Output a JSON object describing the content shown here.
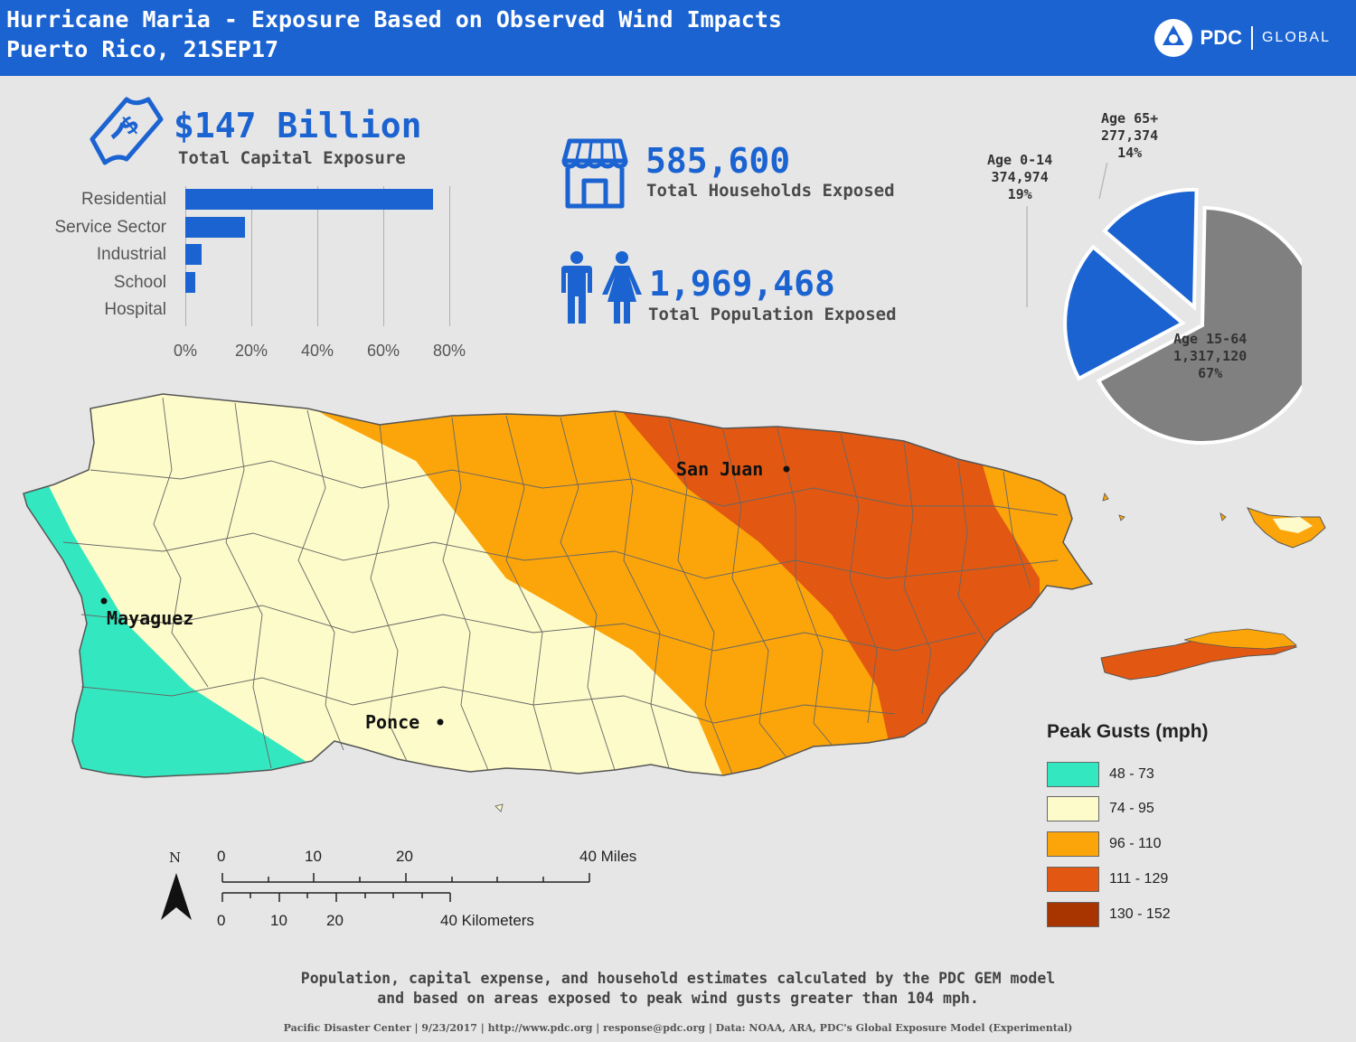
{
  "header": {
    "title_line1": "Hurricane Maria - Exposure Based on Observed Wind Impacts",
    "title_line2": "Puerto Rico, 21SEP17",
    "logo_name": "PDC",
    "logo_global": "GLOBAL",
    "header_color": "#1b63d1"
  },
  "stats": {
    "capital": {
      "value": "$147 Billion",
      "label": "Total Capital Exposure",
      "icon": "money-icon"
    },
    "households": {
      "value": "585,600",
      "label": "Total Households Exposed",
      "icon": "storefront-icon"
    },
    "population": {
      "value": "1,969,468",
      "label": "Total Population Exposed",
      "icon": "people-icon"
    }
  },
  "chart_data": [
    {
      "type": "bar",
      "orientation": "horizontal",
      "categories": [
        "Residential",
        "Service Sector",
        "Industrial",
        "School",
        "Hospital"
      ],
      "values": [
        75,
        18,
        5,
        3,
        0
      ],
      "x_ticks": [
        "0%",
        "20%",
        "40%",
        "60%",
        "80%"
      ],
      "xlim": [
        0,
        80
      ],
      "grid": true,
      "color": "#1b63d1"
    },
    {
      "type": "pie",
      "slices": [
        {
          "label": "Age 15-64",
          "value_text": "1,317,120",
          "percent_text": "67%",
          "value": 1317120,
          "color": "#808080",
          "exploded": false
        },
        {
          "label": "Age 0-14",
          "value_text": "374,974",
          "percent_text": "19%",
          "value": 374974,
          "color": "#1b63d1",
          "exploded": true
        },
        {
          "label": "Age 65+",
          "value_text": "277,374",
          "percent_text": "14%",
          "value": 277374,
          "color": "#1b63d1",
          "exploded": true
        }
      ]
    }
  ],
  "map": {
    "cities": [
      {
        "name": "San Juan"
      },
      {
        "name": "Mayaguez"
      },
      {
        "name": "Ponce"
      }
    ],
    "north_label": "N",
    "scale": {
      "miles_ticks": [
        "0",
        "10",
        "20",
        "40 Miles"
      ],
      "km_ticks": [
        "0",
        "10",
        "20",
        "40 Kilometers"
      ]
    },
    "legend": {
      "title": "Peak Gusts (mph)",
      "items": [
        {
          "label": "48 - 73",
          "color": "#33e8c0"
        },
        {
          "label": "74 - 95",
          "color": "#fdfbc9"
        },
        {
          "label": "96 - 110",
          "color": "#fca50a"
        },
        {
          "label": "111 - 129",
          "color": "#e25812"
        },
        {
          "label": "130 - 152",
          "color": "#a83400"
        }
      ]
    }
  },
  "footer": {
    "note_line1": "Population, capital expense, and household estimates calculated by the PDC GEM model",
    "note_line2": "and based on areas exposed to peak wind gusts greater than 104 mph.",
    "credits": "Pacific Disaster Center | 9/23/2017 | http://www.pdc.org | response@pdc.org | Data: NOAA, ARA, PDC's Global Exposure Model (Experimental)"
  }
}
